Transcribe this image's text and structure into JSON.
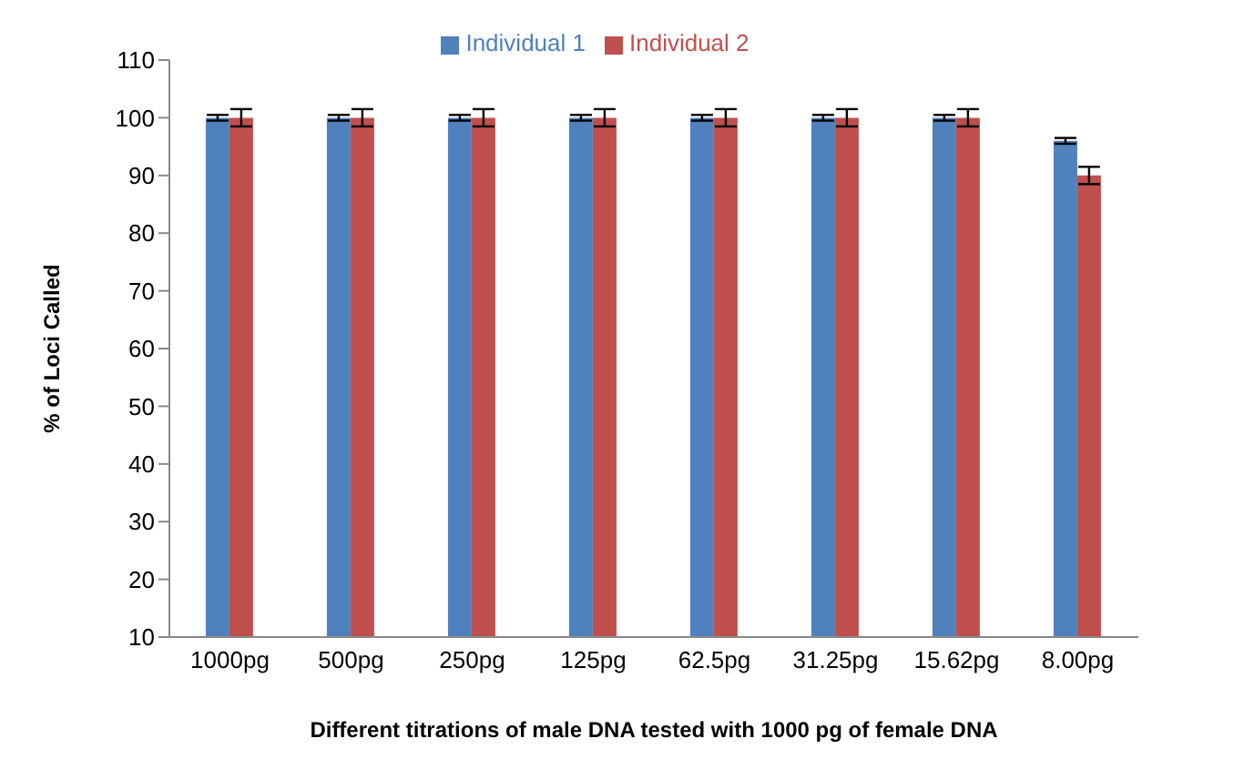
{
  "chart_data": {
    "type": "bar",
    "xlabel": "Different titrations of male DNA tested with 1000 pg of female DNA",
    "ylabel": "% of Loci Called",
    "categories": [
      "1000pg",
      "500pg",
      "250pg",
      "125pg",
      "62.5pg",
      "31.25pg",
      "15.62pg",
      "8.00pg"
    ],
    "series": [
      {
        "name": "Individual 1",
        "color": "#4f81bd",
        "values": [
          100,
          100,
          100,
          100,
          100,
          100,
          100,
          96
        ],
        "errors": [
          0.5,
          0.5,
          0.5,
          0.5,
          0.5,
          0.5,
          0.5,
          0.5
        ]
      },
      {
        "name": "Individual 2",
        "color": "#c0504d",
        "values": [
          100,
          100,
          100,
          100,
          100,
          100,
          100,
          90
        ],
        "errors": [
          1.5,
          1.5,
          1.5,
          1.5,
          1.5,
          1.5,
          1.5,
          1.5
        ]
      }
    ],
    "ylim": [
      10,
      110
    ],
    "yticks": [
      10,
      20,
      30,
      40,
      50,
      60,
      70,
      80,
      90,
      100,
      110
    ],
    "grid": false,
    "legend": "top"
  }
}
